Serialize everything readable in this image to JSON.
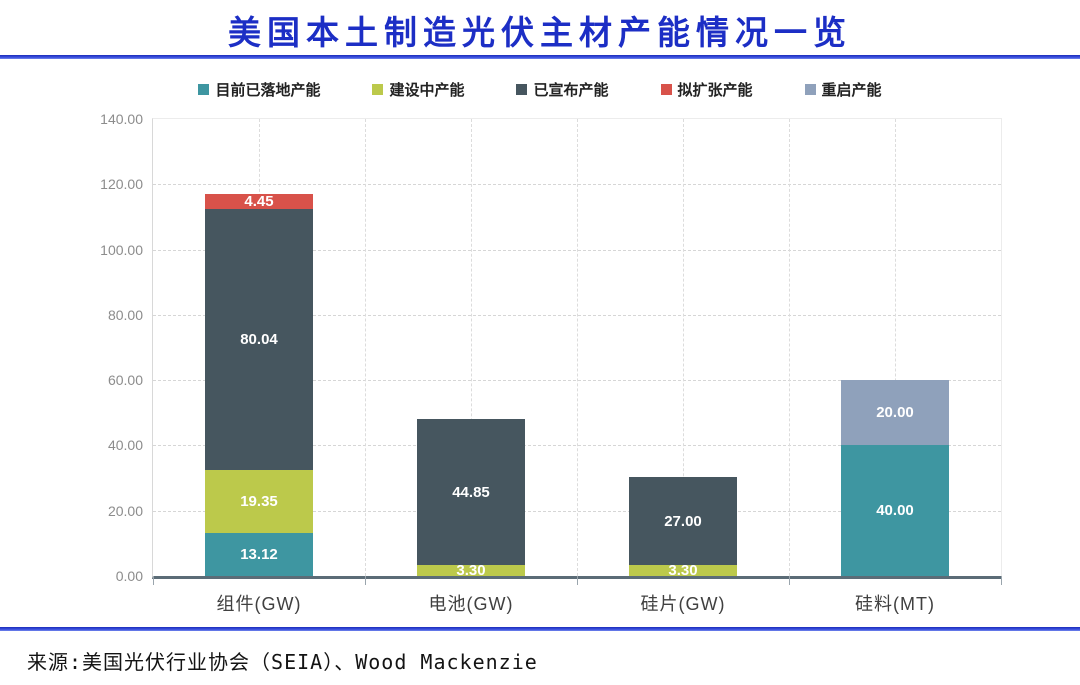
{
  "page": {
    "title": "美国本土制造光伏主材产能情况一览",
    "source": "来源:美国光伏行业协会（SEIA）、Wood Mackenzie"
  },
  "chart_data": {
    "type": "bar",
    "stacked": true,
    "title": "美国本土制造光伏主材产能情况一览",
    "categories": [
      "组件(GW)",
      "电池(GW)",
      "硅片(GW)",
      "硅料(MT)"
    ],
    "series": [
      {
        "name": "目前已落地产能",
        "color": "#3E96A1",
        "values": [
          13.12,
          0,
          0,
          40.0
        ]
      },
      {
        "name": "建设中产能",
        "color": "#BCC94B",
        "values": [
          19.35,
          3.3,
          3.3,
          0
        ]
      },
      {
        "name": "已宣布产能",
        "color": "#46565F",
        "values": [
          80.04,
          44.85,
          27.0,
          0
        ]
      },
      {
        "name": "拟扩张产能",
        "color": "#D8524A",
        "values": [
          4.45,
          0,
          0,
          0
        ]
      },
      {
        "name": "重启产能",
        "color": "#8FA1BB",
        "values": [
          0,
          0,
          0,
          20.0
        ]
      }
    ],
    "ylim": [
      0,
      140
    ],
    "ytick_step": 20,
    "ytick_labels": [
      "0.00",
      "20.00",
      "40.00",
      "60.00",
      "80.00",
      "100.00",
      "120.00",
      "140.00"
    ],
    "value_decimals": 2,
    "legend_position": "top",
    "grid": {
      "horizontal": "dashed",
      "vertical": "dashed-half-category"
    },
    "data_labels": "white bold on every non-zero segment"
  },
  "colors": {
    "title_blue": "#1C2EC5",
    "rule_blue": "#2B3FD6",
    "axis_text": "#8C8C8C",
    "category_text": "#404040",
    "baseline": "#5B6C77"
  }
}
